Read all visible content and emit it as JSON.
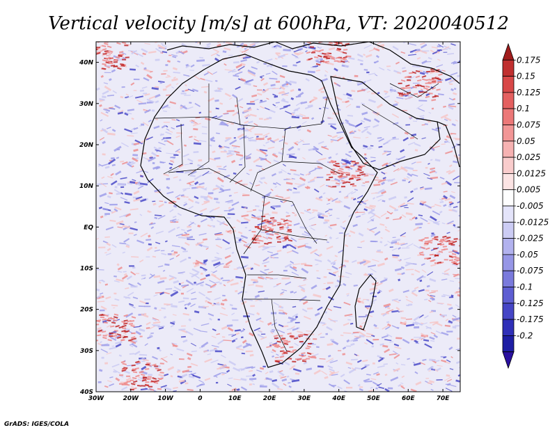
{
  "title": "Vertical velocity [m/s] at 600hPa, VT: 2020040512",
  "footer": "GrADS: IGES/COLA",
  "map": {
    "projection": "latlon",
    "lon_range": [
      -30,
      75
    ],
    "lat_range": [
      -40,
      45
    ],
    "x_ticks": [
      {
        "value": -30,
        "label": "30W"
      },
      {
        "value": -20,
        "label": "20W"
      },
      {
        "value": -10,
        "label": "10W"
      },
      {
        "value": 0,
        "label": "0"
      },
      {
        "value": 10,
        "label": "10E"
      },
      {
        "value": 20,
        "label": "20E"
      },
      {
        "value": 30,
        "label": "30E"
      },
      {
        "value": 40,
        "label": "40E"
      },
      {
        "value": 50,
        "label": "50E"
      },
      {
        "value": 60,
        "label": "60E"
      },
      {
        "value": 70,
        "label": "70E"
      }
    ],
    "y_ticks": [
      {
        "value": 40,
        "label": "40N"
      },
      {
        "value": 30,
        "label": "30N"
      },
      {
        "value": 20,
        "label": "20N"
      },
      {
        "value": 10,
        "label": "10N"
      },
      {
        "value": 0,
        "label": "EQ"
      },
      {
        "value": -10,
        "label": "10S"
      },
      {
        "value": -20,
        "label": "20S"
      },
      {
        "value": -30,
        "label": "30S"
      },
      {
        "value": -40,
        "label": "40S"
      }
    ]
  },
  "colorbar": {
    "colors": [
      "#a01c1c",
      "#c03030",
      "#d84848",
      "#e46060",
      "#ec7878",
      "#f29696",
      "#f6b2b2",
      "#f9cccc",
      "#fce4e4",
      "#fefefe",
      "#e4e4fa",
      "#ccccf4",
      "#b2b2ee",
      "#9696e6",
      "#7a7adc",
      "#5e5ed2",
      "#4646c6",
      "#3030b8",
      "#1e1ea4",
      "#2a10a0"
    ],
    "labels": [
      "0.175",
      "0.15",
      "0.125",
      "0.1",
      "0.075",
      "0.05",
      "0.025",
      "0.0125",
      "0.005",
      "-0.005",
      "-0.0125",
      "-0.025",
      "-0.05",
      "-0.075",
      "-0.1",
      "-0.125",
      "-0.175",
      "-0.2"
    ]
  },
  "field_palette": {
    "background": "#ecebf8",
    "strong_up": "#c02828",
    "up": "#ee8a8a",
    "weak_up": "#f6c4c4",
    "down": "#9a9ae8",
    "strong_down": "#4040c4",
    "weak_down": "#c8c8f2"
  }
}
